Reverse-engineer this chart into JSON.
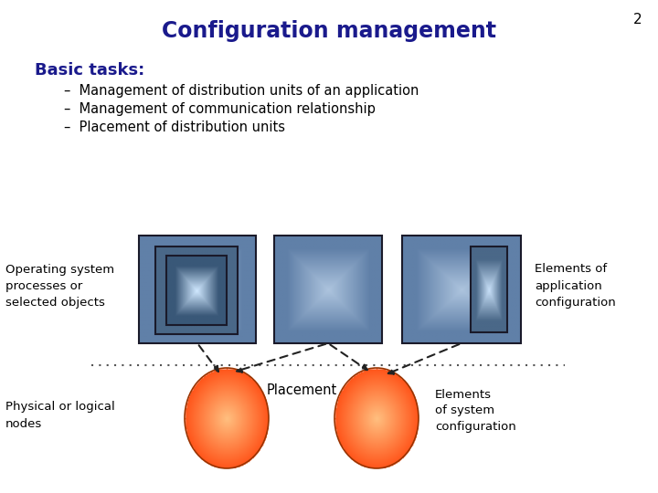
{
  "title": "Configuration management",
  "slide_number": "2",
  "basic_tasks_header": "Basic tasks:",
  "bullet_points": [
    "Management of distribution units of an application",
    "Management of communication relationship",
    "Placement of distribution units"
  ],
  "left_label": "Operating system\nprocesses or\nselected objects",
  "right_label": "Elements of\napplication\nconfiguration",
  "bottom_left_label": "Physical or logical\nnodes",
  "bottom_center_label": "Placement",
  "bottom_right_label": "Elements\nof system\nconfiguration",
  "title_color": "#1a1a8c",
  "header_color": "#1a1a8c",
  "text_color": "#000000",
  "box_fill_dark": "#6080a8",
  "box_fill_light": "#adc4de",
  "box_edge_color": "#1a1a2a",
  "inner_box_edge": "#1a1a2a",
  "ellipse_outer_color": "#ff6633",
  "ellipse_inner_color": "#ffaa77",
  "dashed_line_color": "#555555",
  "arrow_color": "#222222",
  "background_color": "#ffffff"
}
